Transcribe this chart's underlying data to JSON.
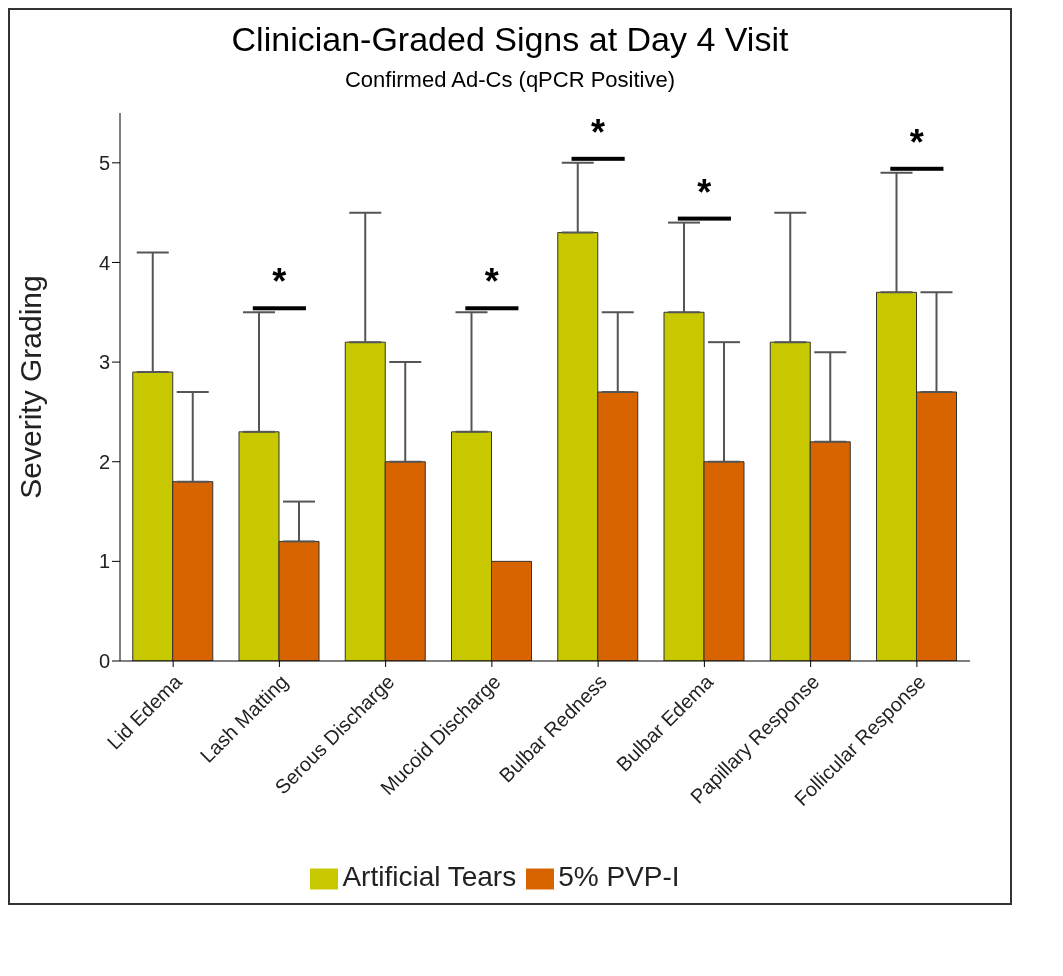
{
  "chart_data": {
    "type": "bar",
    "title": "Clinician-Graded Signs at Day 4 Visit",
    "subtitle": "Confirmed Ad-Cs (qPCR Positive)",
    "ylabel": "Severity Grading",
    "categories": [
      "Lid Edema",
      "Lash Matting",
      "Serous Discharge",
      "Mucoid Discharge",
      "Bulbar Redness",
      "Bulbar Edema",
      "Papillary Response",
      "Follicular Response"
    ],
    "series": [
      {
        "name": "Artificial Tears",
        "color": "#c8c800",
        "values": [
          2.9,
          2.3,
          3.2,
          2.3,
          4.3,
          3.5,
          3.2,
          3.7
        ],
        "errors": [
          [
            2.9,
            4.1
          ],
          [
            2.3,
            3.5
          ],
          [
            3.2,
            4.5
          ],
          [
            2.3,
            3.5
          ],
          [
            4.3,
            5.0
          ],
          [
            3.5,
            4.4
          ],
          [
            3.2,
            4.5
          ],
          [
            3.7,
            4.9
          ]
        ]
      },
      {
        "name": "5% PVP-I",
        "color": "#d86400",
        "values": [
          1.8,
          1.2,
          2.0,
          1.0,
          2.7,
          2.0,
          2.2,
          2.7
        ],
        "errors": [
          [
            1.8,
            2.7
          ],
          [
            1.2,
            1.6
          ],
          [
            2.0,
            3.0
          ],
          null,
          [
            2.7,
            3.5
          ],
          [
            2.0,
            3.2
          ],
          [
            2.2,
            3.1
          ],
          [
            2.7,
            3.7
          ]
        ]
      }
    ],
    "ylim": [
      0,
      5.5
    ],
    "yticks": [
      0,
      1,
      2,
      3,
      4,
      5
    ],
    "grid": false,
    "legend": "bottom",
    "annotations": [
      {
        "text": "*",
        "x": "Lash Matting",
        "y": 3.5
      },
      {
        "text": "*",
        "x": "Mucoid Discharge",
        "y": 3.5
      },
      {
        "text": "*",
        "x": "Bulbar Redness",
        "y": 5.0
      },
      {
        "text": "*",
        "x": "Bulbar Edema",
        "y": 4.4
      },
      {
        "text": "*",
        "x": "Follicular Response",
        "y": 4.9
      }
    ]
  }
}
